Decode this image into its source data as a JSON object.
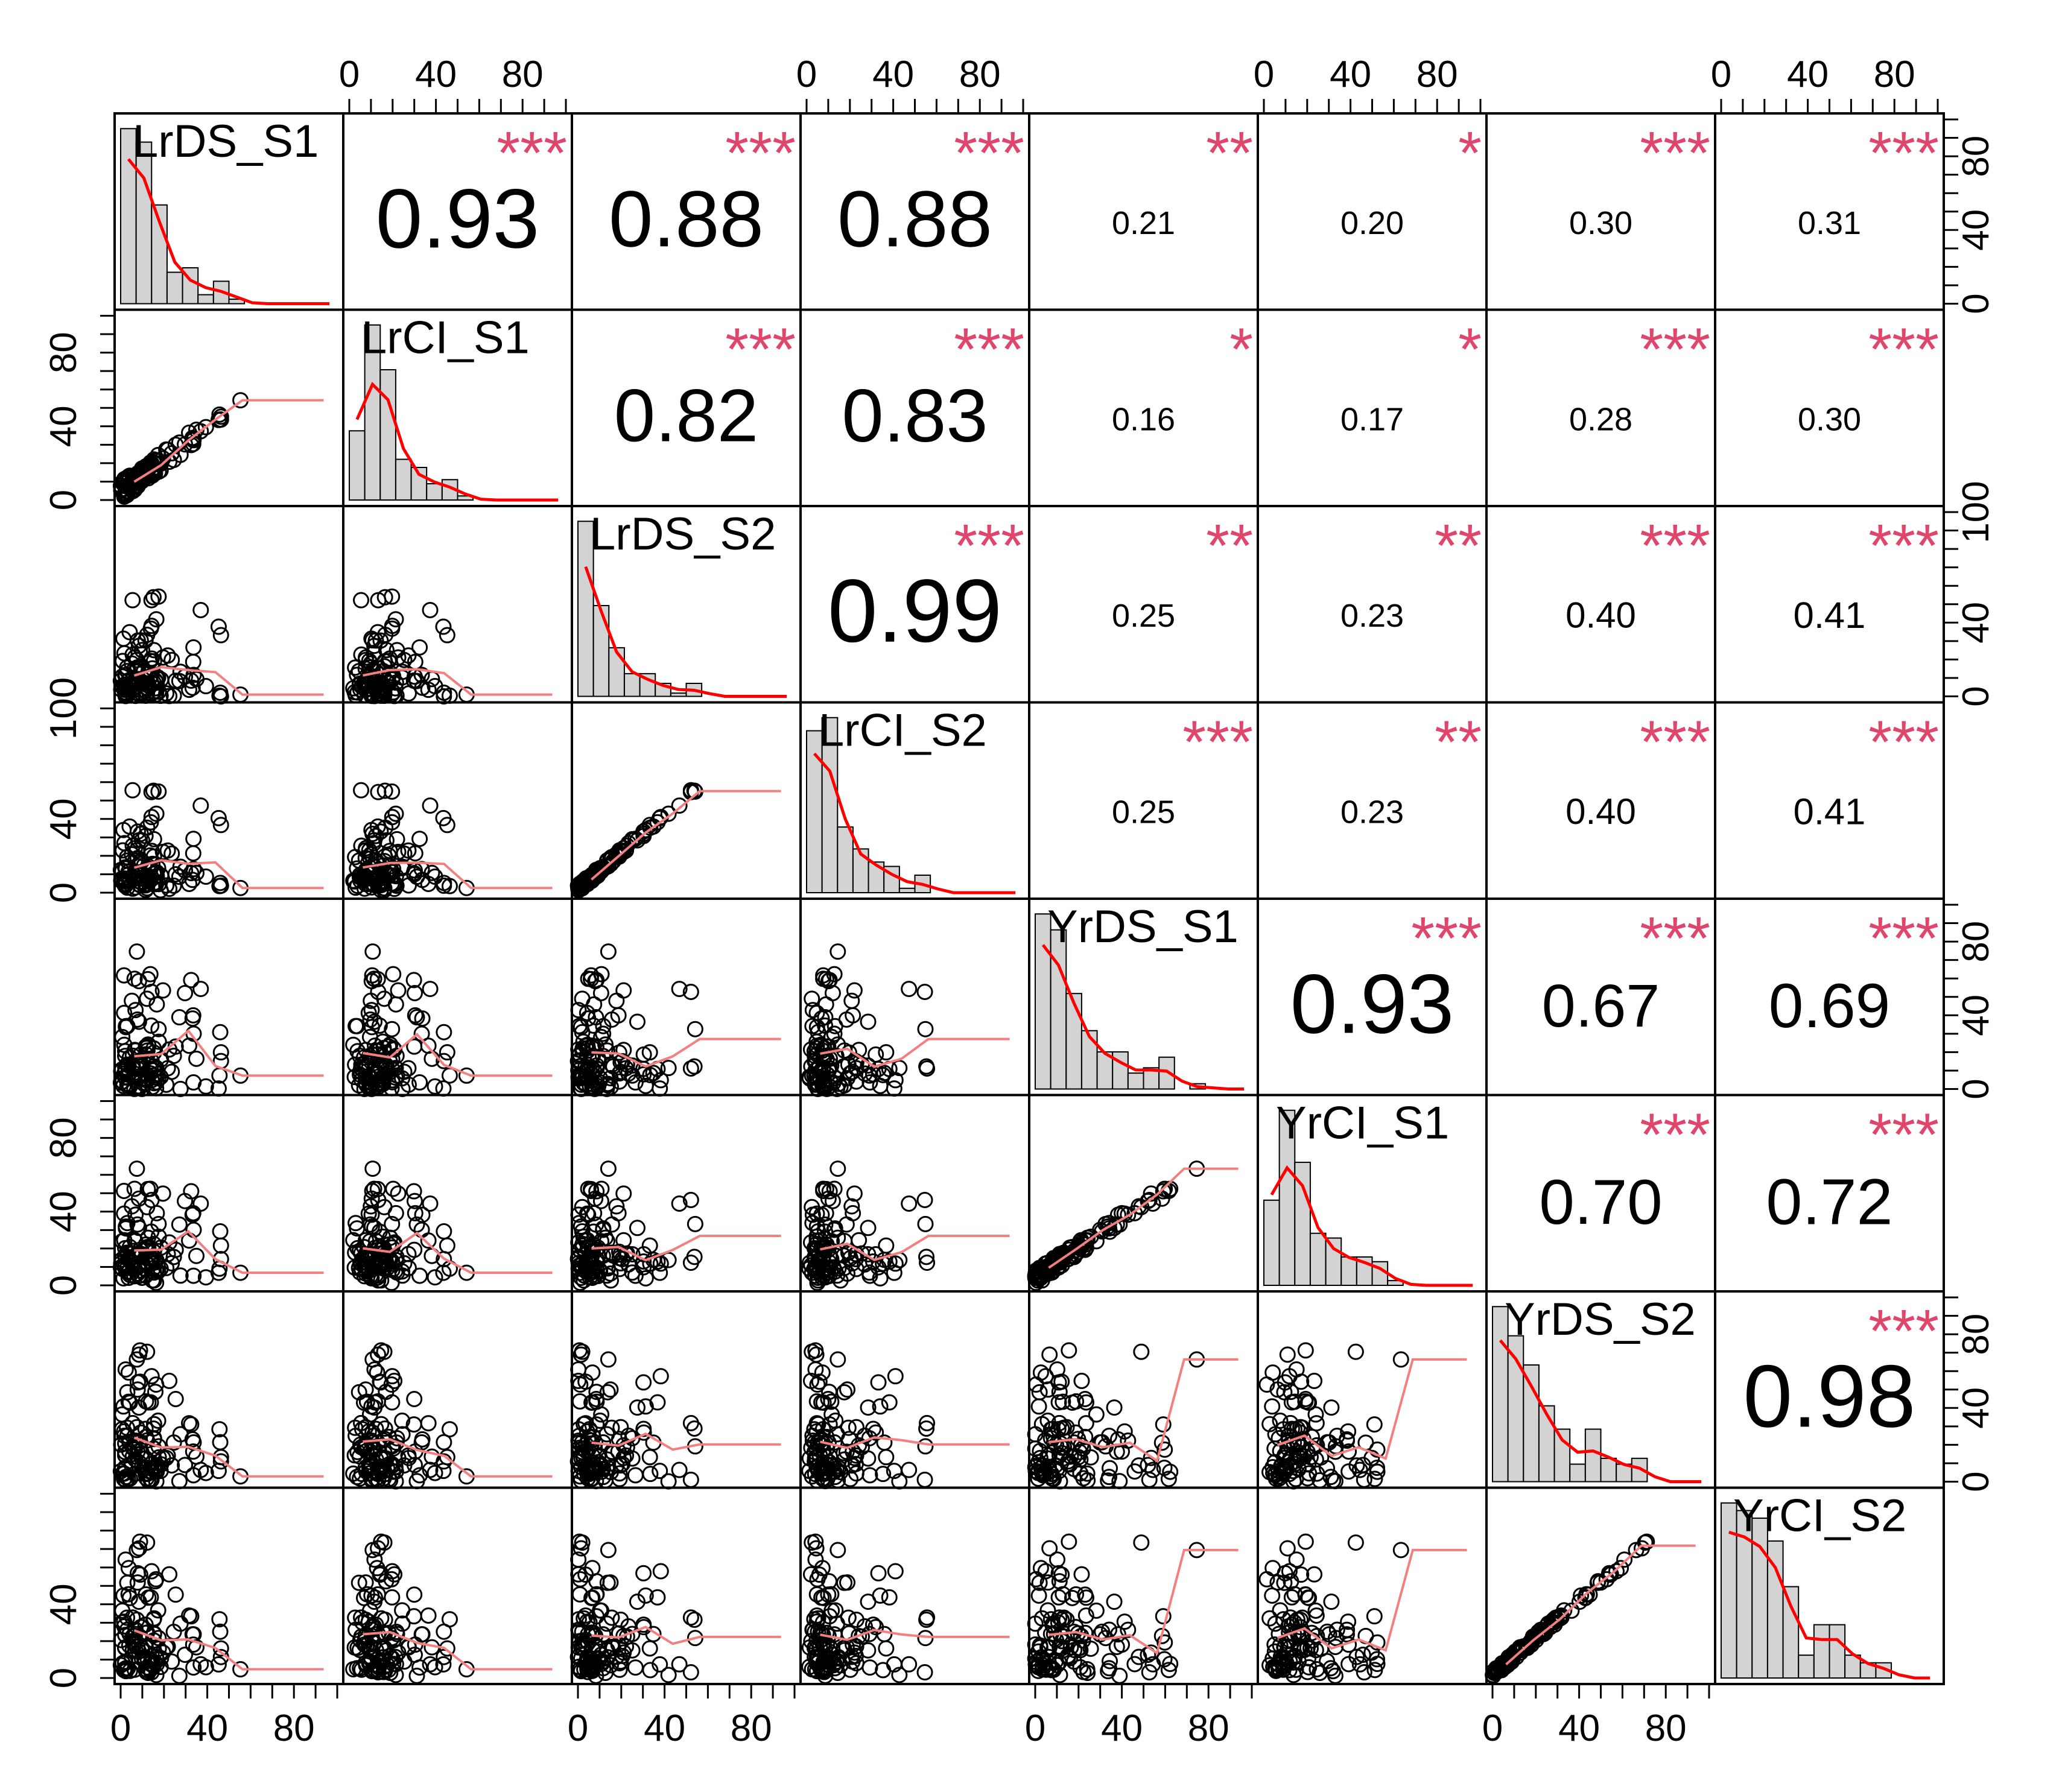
{
  "chart_data": {
    "type": "scatter",
    "subtype": "correlation-matrix",
    "variables": [
      "LrDS_S1",
      "LrCI_S1",
      "LrDS_S2",
      "LrCI_S2",
      "YrDS_S1",
      "YrCI_S1",
      "YrDS_S2",
      "YrCI_S2"
    ],
    "correlations": [
      {
        "row": 0,
        "col": 1,
        "r": "0.93",
        "stars": "***"
      },
      {
        "row": 0,
        "col": 2,
        "r": "0.88",
        "stars": "***"
      },
      {
        "row": 0,
        "col": 3,
        "r": "0.88",
        "stars": "***"
      },
      {
        "row": 0,
        "col": 4,
        "r": "0.21",
        "stars": "**"
      },
      {
        "row": 0,
        "col": 5,
        "r": "0.20",
        "stars": "*"
      },
      {
        "row": 0,
        "col": 6,
        "r": "0.30",
        "stars": "***"
      },
      {
        "row": 0,
        "col": 7,
        "r": "0.31",
        "stars": "***"
      },
      {
        "row": 1,
        "col": 2,
        "r": "0.82",
        "stars": "***"
      },
      {
        "row": 1,
        "col": 3,
        "r": "0.83",
        "stars": "***"
      },
      {
        "row": 1,
        "col": 4,
        "r": "0.16",
        "stars": "*"
      },
      {
        "row": 1,
        "col": 5,
        "r": "0.17",
        "stars": "*"
      },
      {
        "row": 1,
        "col": 6,
        "r": "0.28",
        "stars": "***"
      },
      {
        "row": 1,
        "col": 7,
        "r": "0.30",
        "stars": "***"
      },
      {
        "row": 2,
        "col": 3,
        "r": "0.99",
        "stars": "***"
      },
      {
        "row": 2,
        "col": 4,
        "r": "0.25",
        "stars": "**"
      },
      {
        "row": 2,
        "col": 5,
        "r": "0.23",
        "stars": "**"
      },
      {
        "row": 2,
        "col": 6,
        "r": "0.40",
        "stars": "***"
      },
      {
        "row": 2,
        "col": 7,
        "r": "0.41",
        "stars": "***"
      },
      {
        "row": 3,
        "col": 4,
        "r": "0.25",
        "stars": "***"
      },
      {
        "row": 3,
        "col": 5,
        "r": "0.23",
        "stars": "**"
      },
      {
        "row": 3,
        "col": 6,
        "r": "0.40",
        "stars": "***"
      },
      {
        "row": 3,
        "col": 7,
        "r": "0.41",
        "stars": "***"
      },
      {
        "row": 4,
        "col": 5,
        "r": "0.93",
        "stars": "***"
      },
      {
        "row": 4,
        "col": 6,
        "r": "0.67",
        "stars": "***"
      },
      {
        "row": 4,
        "col": 7,
        "r": "0.69",
        "stars": "***"
      },
      {
        "row": 5,
        "col": 6,
        "r": "0.70",
        "stars": "***"
      },
      {
        "row": 5,
        "col": 7,
        "r": "0.72",
        "stars": "***"
      },
      {
        "row": 6,
        "col": 7,
        "r": "0.98",
        "stars": "***"
      }
    ],
    "axes": {
      "top": [
        {
          "col": 1,
          "ticks": [
            "0",
            "40",
            "80"
          ]
        },
        {
          "col": 3,
          "ticks": [
            "0",
            "40",
            "80"
          ]
        },
        {
          "col": 5,
          "ticks": [
            "0",
            "40",
            "80"
          ]
        },
        {
          "col": 7,
          "ticks": [
            "0",
            "40",
            "80"
          ]
        }
      ],
      "bottom": [
        {
          "col": 0,
          "ticks": [
            "0",
            "40",
            "80"
          ]
        },
        {
          "col": 2,
          "ticks": [
            "0",
            "40",
            "80"
          ]
        },
        {
          "col": 4,
          "ticks": [
            "0",
            "40",
            "80"
          ]
        },
        {
          "col": 6,
          "ticks": [
            "0",
            "40",
            "80"
          ]
        }
      ],
      "left": [
        {
          "row": 1,
          "ticks": [
            "0",
            "40",
            "80"
          ]
        },
        {
          "row": 3,
          "ticks": [
            "0",
            "40",
            "100"
          ]
        },
        {
          "row": 5,
          "ticks": [
            "0",
            "40",
            "80"
          ]
        },
        {
          "row": 7,
          "ticks": [
            "0",
            "40"
          ]
        }
      ],
      "right": [
        {
          "row": 0,
          "ticks": [
            "0",
            "40",
            "80"
          ]
        },
        {
          "row": 2,
          "ticks": [
            "0",
            "40",
            "100"
          ]
        },
        {
          "row": 4,
          "ticks": [
            "0",
            "40",
            "80"
          ]
        },
        {
          "row": 6,
          "ticks": [
            "0",
            "40",
            "80"
          ]
        }
      ]
    },
    "axis_range": [
      0,
      100
    ],
    "grid": false,
    "colors": {
      "stars": "#e0456b",
      "smooth_line": "#f28080",
      "density_line": "#ff0000",
      "histogram_fill": "#d3d3d3",
      "points": "#000000"
    }
  }
}
